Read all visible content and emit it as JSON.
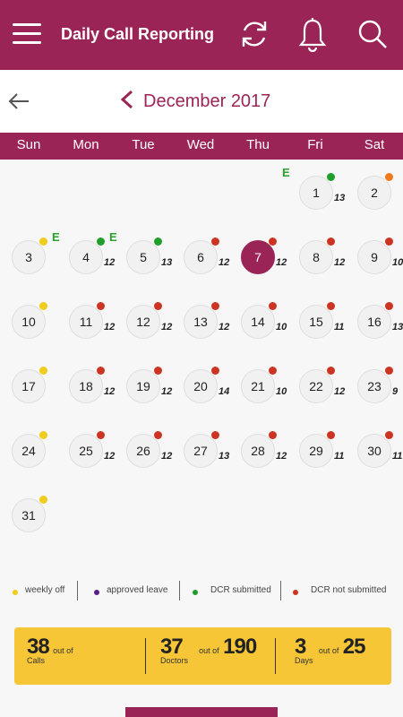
{
  "header": {
    "title": "Daily Call Reporting",
    "icons": [
      "menu-icon",
      "refresh-icon",
      "bell-icon",
      "search-icon"
    ]
  },
  "month_nav": {
    "label": "December 2017",
    "icons": [
      "back-arrow-icon",
      "chevron-left-icon"
    ]
  },
  "weekdays": [
    "Sun",
    "Mon",
    "Tue",
    "Wed",
    "Thu",
    "Fri",
    "Sat"
  ],
  "calendar": {
    "selected_day": "7",
    "days": [
      {
        "day": "1",
        "calls": "13",
        "status": "submitted",
        "e": "E"
      },
      {
        "day": "2",
        "calls": "",
        "status": "orange",
        "e": ""
      },
      {
        "day": "3",
        "calls": "",
        "status": "weekly_off",
        "e": ""
      },
      {
        "day": "4",
        "calls": "12",
        "status": "submitted",
        "e": "E"
      },
      {
        "day": "5",
        "calls": "13",
        "status": "submitted",
        "e": "E"
      },
      {
        "day": "6",
        "calls": "12",
        "status": "not_submitted",
        "e": ""
      },
      {
        "day": "7",
        "calls": "12",
        "status": "not_submitted",
        "e": ""
      },
      {
        "day": "8",
        "calls": "12",
        "status": "not_submitted",
        "e": ""
      },
      {
        "day": "9",
        "calls": "10",
        "status": "not_submitted",
        "e": ""
      },
      {
        "day": "10",
        "calls": "",
        "status": "weekly_off",
        "e": ""
      },
      {
        "day": "11",
        "calls": "12",
        "status": "not_submitted",
        "e": ""
      },
      {
        "day": "12",
        "calls": "12",
        "status": "not_submitted",
        "e": ""
      },
      {
        "day": "13",
        "calls": "12",
        "status": "not_submitted",
        "e": ""
      },
      {
        "day": "14",
        "calls": "10",
        "status": "not_submitted",
        "e": ""
      },
      {
        "day": "15",
        "calls": "11",
        "status": "not_submitted",
        "e": ""
      },
      {
        "day": "16",
        "calls": "13",
        "status": "not_submitted",
        "e": ""
      },
      {
        "day": "17",
        "calls": "",
        "status": "weekly_off",
        "e": ""
      },
      {
        "day": "18",
        "calls": "12",
        "status": "not_submitted",
        "e": ""
      },
      {
        "day": "19",
        "calls": "12",
        "status": "not_submitted",
        "e": ""
      },
      {
        "day": "20",
        "calls": "14",
        "status": "not_submitted",
        "e": ""
      },
      {
        "day": "21",
        "calls": "10",
        "status": "not_submitted",
        "e": ""
      },
      {
        "day": "22",
        "calls": "12",
        "status": "not_submitted",
        "e": ""
      },
      {
        "day": "23",
        "calls": "9",
        "status": "not_submitted",
        "e": ""
      },
      {
        "day": "24",
        "calls": "",
        "status": "weekly_off",
        "e": ""
      },
      {
        "day": "25",
        "calls": "12",
        "status": "not_submitted",
        "e": ""
      },
      {
        "day": "26",
        "calls": "12",
        "status": "not_submitted",
        "e": ""
      },
      {
        "day": "27",
        "calls": "13",
        "status": "not_submitted",
        "e": ""
      },
      {
        "day": "28",
        "calls": "12",
        "status": "not_submitted",
        "e": ""
      },
      {
        "day": "29",
        "calls": "11",
        "status": "not_submitted",
        "e": ""
      },
      {
        "day": "30",
        "calls": "11",
        "status": "not_submitted",
        "e": ""
      },
      {
        "day": "31",
        "calls": "",
        "status": "weekly_off",
        "e": ""
      }
    ]
  },
  "status_colors": {
    "weekly_off": "#f2cc1a",
    "approved_leave": "#5a1e8c",
    "submitted": "#1f9e2a",
    "not_submitted": "#cc3320",
    "orange": "#f07a1a"
  },
  "legend": [
    {
      "label": "weekly off",
      "status": "weekly_off"
    },
    {
      "label": "approved leave",
      "status": "approved_leave"
    },
    {
      "label": "DCR submitted",
      "status": "submitted"
    },
    {
      "label": "DCR not submitted",
      "status": "not_submitted"
    }
  ],
  "summary": {
    "calls": {
      "value": "38",
      "out_of": "out of",
      "label": "Calls"
    },
    "doctors": {
      "value": "37",
      "out_of": "out of",
      "total": "190",
      "label": "Doctors"
    },
    "days": {
      "value": "3",
      "out_of": "out of",
      "total": "25",
      "label": "Days"
    }
  },
  "colors": {
    "primary": "#9b2457",
    "summary_bg": "#f6c636"
  }
}
